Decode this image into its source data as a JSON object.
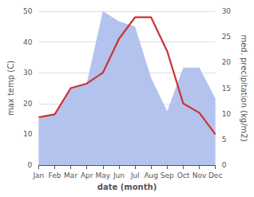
{
  "chart_data": {
    "type": "line",
    "xlabel": "date (month)",
    "ylabel": "max temp (C)",
    "y2label": "med. precipitation (kg/m2)",
    "categories": [
      "Jan",
      "Feb",
      "Mar",
      "Apr",
      "May",
      "Jun",
      "Jul",
      "Aug",
      "Sep",
      "Oct",
      "Nov",
      "Dec"
    ],
    "series": [
      {
        "type": "area",
        "color": "#b3c3ee",
        "axis": "y2",
        "values": [
          9.0,
          10.0,
          15.0,
          16.0,
          30.0,
          28.0,
          27.0,
          17.0,
          10.5,
          19.0,
          19.0,
          13.0
        ]
      },
      {
        "type": "line",
        "color": "#cc3333",
        "values": [
          15.5,
          16.5,
          25.0,
          26.5,
          30.0,
          41.0,
          48.0,
          48.0,
          37.0,
          20.0,
          17.0,
          10.0
        ]
      }
    ],
    "ylim": [
      0,
      50
    ],
    "yticks": [
      0,
      10,
      20,
      30,
      40,
      50
    ],
    "y2lim": [
      0,
      30
    ],
    "y2ticks": [
      0,
      5,
      10,
      15,
      20,
      25,
      30
    ],
    "grid": true
  }
}
